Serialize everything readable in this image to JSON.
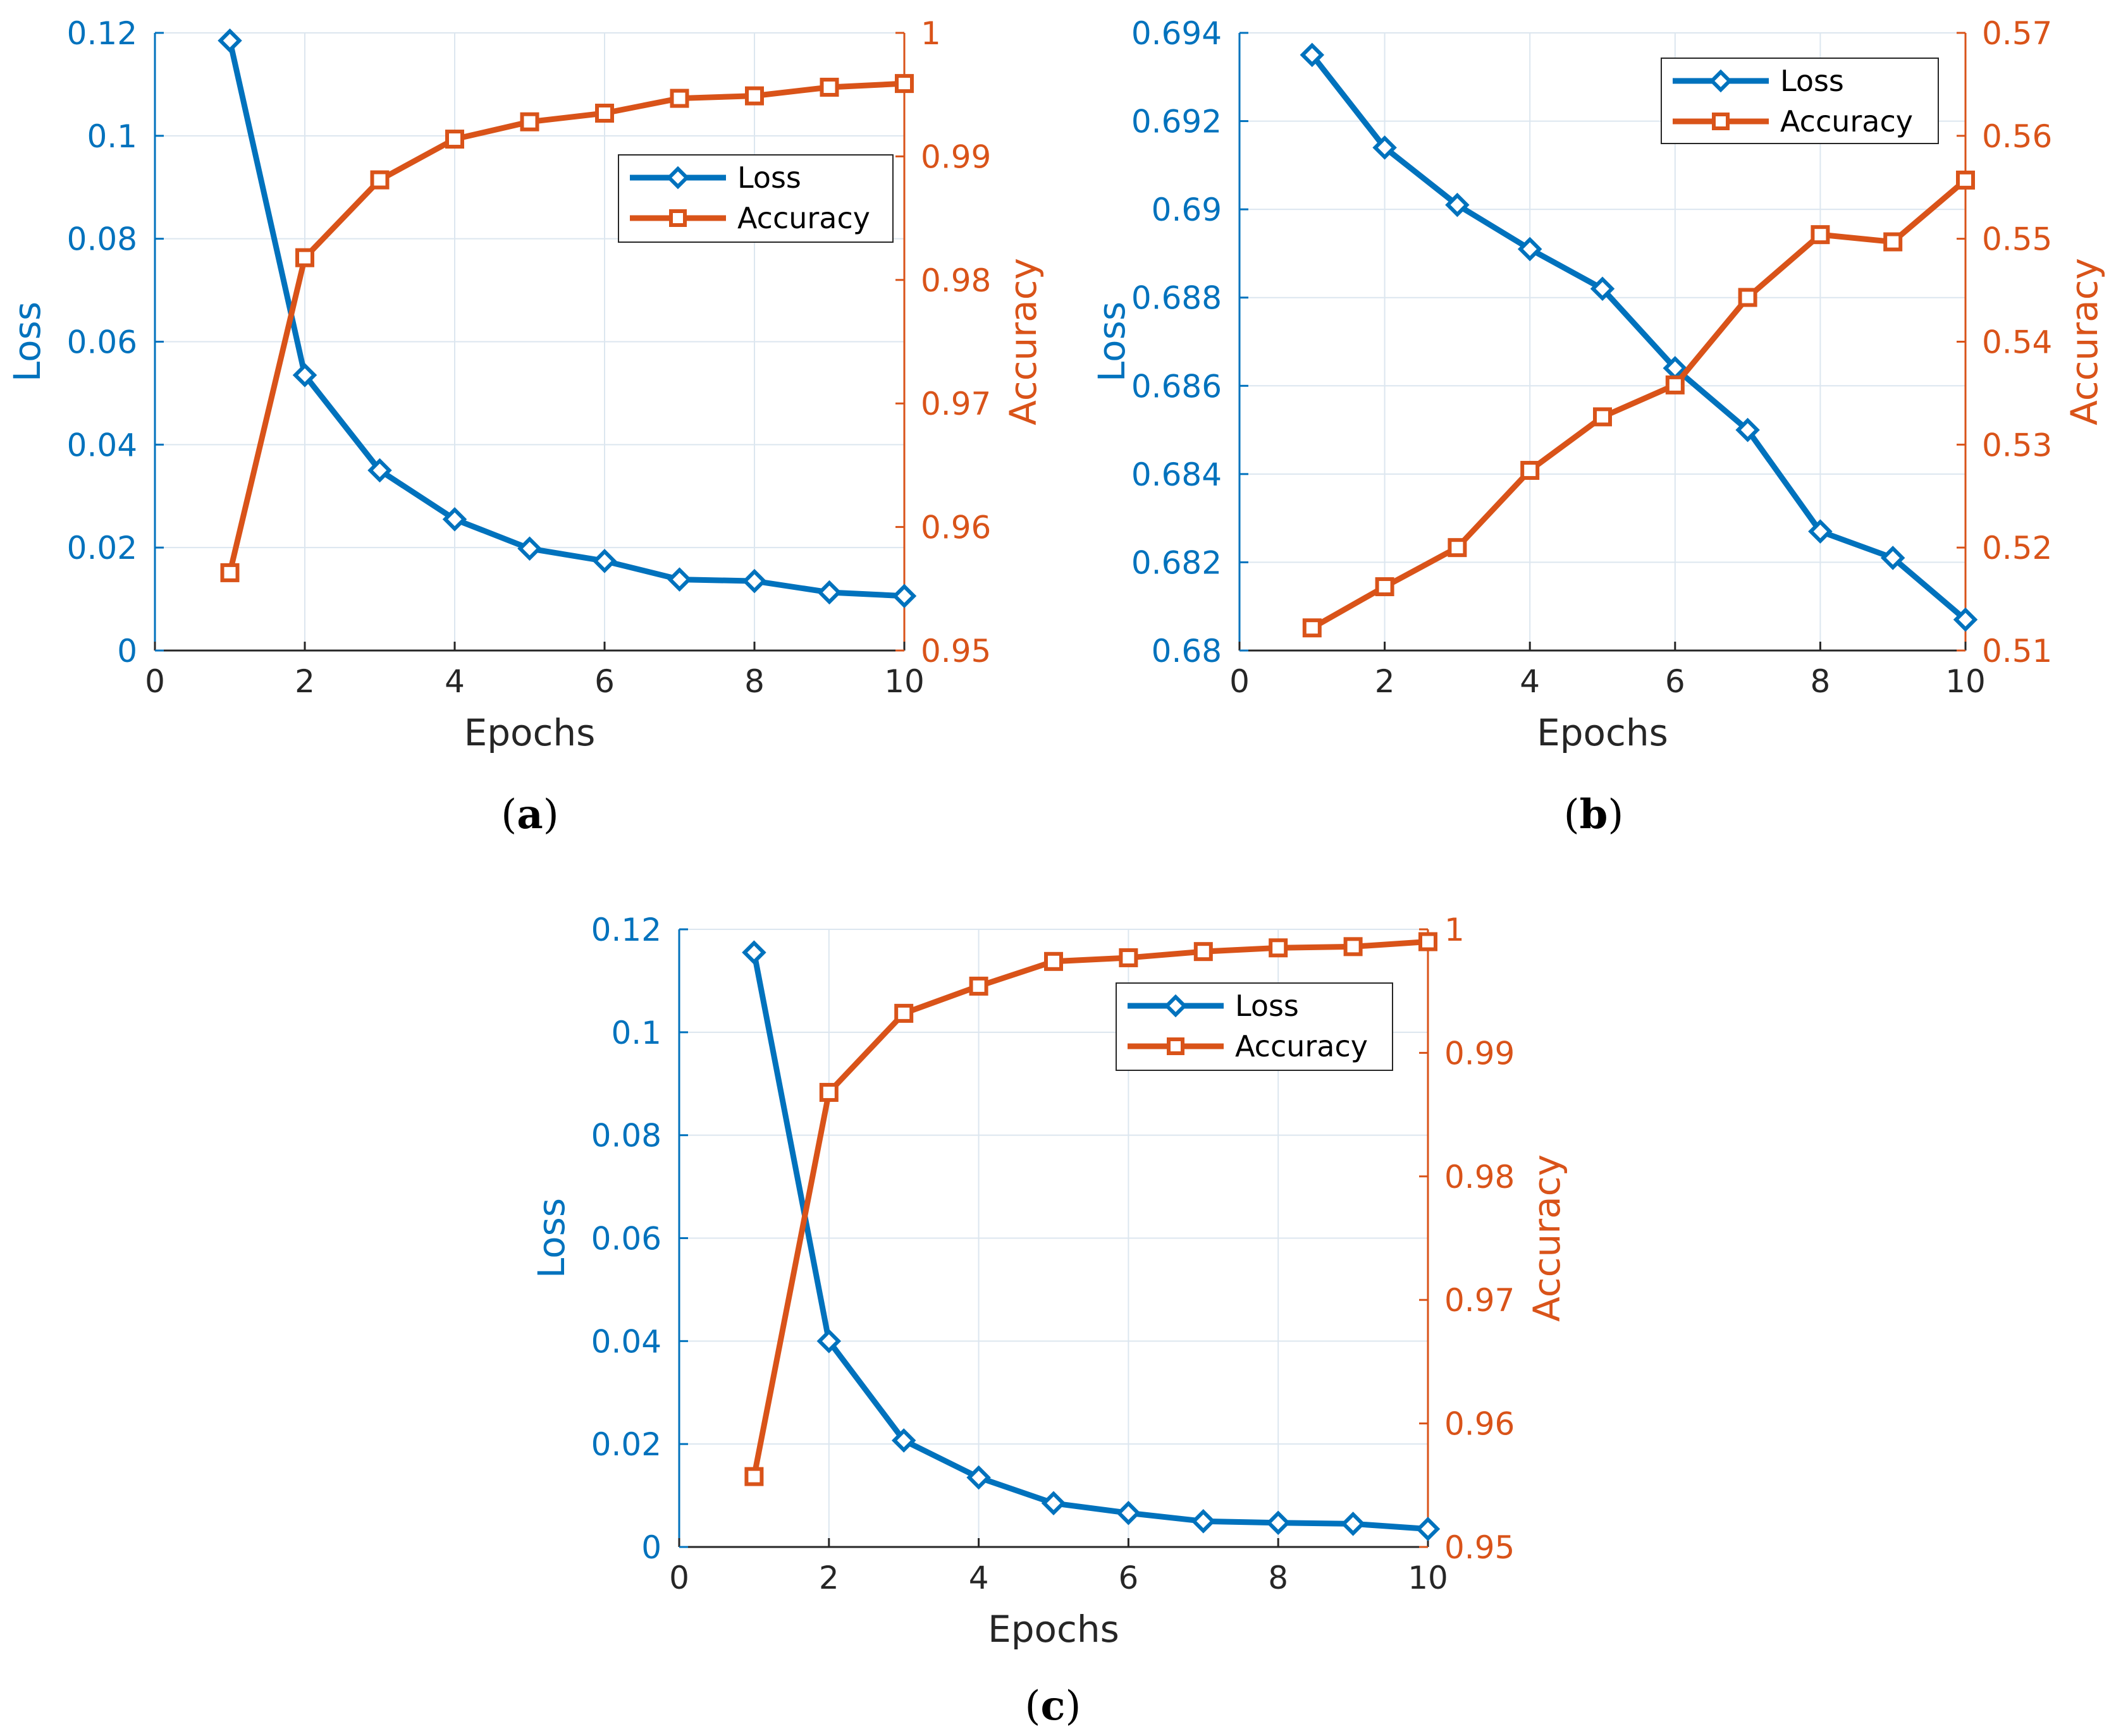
{
  "colors": {
    "loss": "#0072BD",
    "accuracy": "#D95319",
    "grid": "#DCE6EF",
    "axis_text": "#262626"
  },
  "chart_data": [
    {
      "id": "a",
      "type": "line",
      "caption": "a",
      "xlabel": "Epochs",
      "ylabel_left": "Loss",
      "ylabel_right": "Accuracy",
      "xlim": [
        0,
        10
      ],
      "ylim_left": [
        0,
        0.12
      ],
      "ylim_right": [
        0.95,
        1.0
      ],
      "x_ticks": [
        "0",
        "2",
        "4",
        "6",
        "8",
        "10"
      ],
      "y_ticks_left": [
        "0",
        "0.02",
        "0.04",
        "0.06",
        "0.08",
        "0.1",
        "0.12"
      ],
      "y_ticks_right": [
        "0.95",
        "0.96",
        "0.97",
        "0.98",
        "0.99",
        "1"
      ],
      "grid": true,
      "legend_position": "upper-right",
      "series": [
        {
          "name": "Loss",
          "axis": "left",
          "marker": "diamond",
          "x": [
            1,
            2,
            3,
            4,
            5,
            6,
            7,
            8,
            9,
            10
          ],
          "values": [
            0.1185,
            0.0535,
            0.035,
            0.0255,
            0.0198,
            0.0174,
            0.0138,
            0.0135,
            0.0113,
            0.0106
          ]
        },
        {
          "name": "Accuracy",
          "axis": "right",
          "marker": "square",
          "x": [
            1,
            2,
            3,
            4,
            5,
            6,
            7,
            8,
            9,
            10
          ],
          "values": [
            0.9563,
            0.9818,
            0.9881,
            0.9914,
            0.9928,
            0.9935,
            0.9947,
            0.9949,
            0.9956,
            0.9959
          ]
        }
      ]
    },
    {
      "id": "b",
      "type": "line",
      "caption": "b",
      "xlabel": "Epochs",
      "ylabel_left": "Loss",
      "ylabel_right": "Accuracy",
      "xlim": [
        0,
        10
      ],
      "ylim_left": [
        0.68,
        0.694
      ],
      "ylim_right": [
        0.51,
        0.57
      ],
      "x_ticks": [
        "0",
        "2",
        "4",
        "6",
        "8",
        "10"
      ],
      "y_ticks_left": [
        "0.68",
        "0.682",
        "0.684",
        "0.686",
        "0.688",
        "0.69",
        "0.692",
        "0.694"
      ],
      "y_ticks_right": [
        "0.51",
        "0.52",
        "0.53",
        "0.54",
        "0.55",
        "0.56",
        "0.57"
      ],
      "grid": true,
      "legend_position": "top-right",
      "series": [
        {
          "name": "Loss",
          "axis": "left",
          "marker": "diamond",
          "x": [
            1,
            2,
            3,
            4,
            5,
            6,
            7,
            8,
            9,
            10
          ],
          "values": [
            0.6935,
            0.6914,
            0.6901,
            0.6891,
            0.6882,
            0.6864,
            0.685,
            0.6827,
            0.6821,
            0.6807
          ]
        },
        {
          "name": "Accuracy",
          "axis": "right",
          "marker": "square",
          "x": [
            1,
            2,
            3,
            4,
            5,
            6,
            7,
            8,
            9,
            10
          ],
          "values": [
            0.5122,
            0.5162,
            0.52,
            0.5275,
            0.5327,
            0.5358,
            0.5443,
            0.5504,
            0.5497,
            0.5557
          ]
        }
      ]
    },
    {
      "id": "c",
      "type": "line",
      "caption": "c",
      "xlabel": "Epochs",
      "ylabel_left": "Loss",
      "ylabel_right": "Accuracy",
      "xlim": [
        0,
        10
      ],
      "ylim_left": [
        0,
        0.12
      ],
      "ylim_right": [
        0.95,
        1.0
      ],
      "x_ticks": [
        "0",
        "2",
        "4",
        "6",
        "8",
        "10"
      ],
      "y_ticks_left": [
        "0",
        "0.02",
        "0.04",
        "0.06",
        "0.08",
        "0.1",
        "0.12"
      ],
      "y_ticks_right": [
        "0.95",
        "0.96",
        "0.97",
        "0.98",
        "0.99",
        "1"
      ],
      "grid": true,
      "legend_position": "upper-right",
      "series": [
        {
          "name": "Loss",
          "axis": "left",
          "marker": "diamond",
          "x": [
            1,
            2,
            3,
            4,
            5,
            6,
            7,
            8,
            9,
            10
          ],
          "values": [
            0.1155,
            0.04,
            0.0207,
            0.0135,
            0.0085,
            0.0066,
            0.005,
            0.0047,
            0.0045,
            0.0035
          ]
        },
        {
          "name": "Accuracy",
          "axis": "right",
          "marker": "square",
          "x": [
            1,
            2,
            3,
            4,
            5,
            6,
            7,
            8,
            9,
            10
          ],
          "values": [
            0.9557,
            0.9868,
            0.9932,
            0.9954,
            0.9974,
            0.9977,
            0.9982,
            0.9985,
            0.9986,
            0.999
          ]
        }
      ]
    }
  ]
}
